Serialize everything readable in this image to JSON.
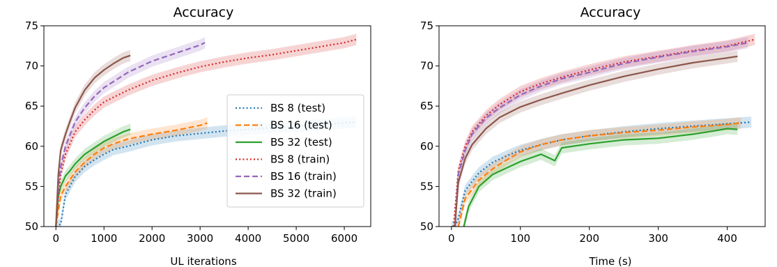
{
  "colors": {
    "BS 8 (test)": "#1f77b4",
    "BS 16 (test)": "#ff7f0e",
    "BS 32 (test)": "#2ca02c",
    "BS 8 (train)": "#d62728",
    "BS 16 (train)": "#9467bd",
    "BS 32 (train)": "#8c564b"
  },
  "chart_data": [
    {
      "type": "line",
      "title": "Accuracy",
      "xlabel": "UL iterations",
      "ylabel": "",
      "xlim": [
        -250,
        6550
      ],
      "ylim": [
        50,
        75
      ],
      "xticks": [
        0,
        1000,
        2000,
        3000,
        4000,
        5000,
        6000
      ],
      "yticks": [
        50,
        55,
        60,
        65,
        70,
        75
      ],
      "grid": false,
      "legend": "right",
      "legend_labels": [
        "BS 8 (test)",
        "BS 16 (test)",
        "BS 32 (test)",
        "BS 8 (train)",
        "BS 16 (train)",
        "BS 32 (train)"
      ],
      "series": [
        {
          "name": "BS 8 (test)",
          "style": "dotted",
          "x": [
            0,
            100,
            200,
            400,
            600,
            800,
            1000,
            1200,
            1500,
            2000,
            2500,
            3000,
            3500,
            4000,
            4500,
            5000,
            5500,
            6000,
            6250
          ],
          "y": [
            50,
            50.3,
            54,
            56.2,
            57.5,
            58.3,
            59,
            59.6,
            60,
            60.8,
            61.3,
            61.6,
            61.9,
            62.1,
            62.3,
            62.5,
            62.7,
            62.9,
            63
          ]
        },
        {
          "name": "BS 16 (test)",
          "style": "dashed",
          "x": [
            0,
            50,
            100,
            200,
            400,
            600,
            800,
            1000,
            1200,
            1500,
            2000,
            2500,
            3000,
            3150
          ],
          "y": [
            50,
            52,
            53.8,
            55,
            56.8,
            58,
            59,
            59.8,
            60.3,
            60.9,
            61.5,
            62,
            62.6,
            62.9
          ]
        },
        {
          "name": "BS 32 (test)",
          "style": "solid",
          "x": [
            0,
            50,
            100,
            200,
            300,
            400,
            500,
            600,
            800,
            1000,
            1200,
            1400,
            1550
          ],
          "y": [
            50,
            53.8,
            55,
            56.3,
            57,
            57.8,
            58.4,
            59,
            59.8,
            60.6,
            61.2,
            61.8,
            62.1
          ]
        },
        {
          "name": "BS 8 (train)",
          "style": "dotted",
          "x": [
            0,
            50,
            100,
            200,
            400,
            600,
            800,
            1000,
            1500,
            2000,
            2500,
            3000,
            3500,
            4000,
            4500,
            5000,
            5500,
            6000,
            6250
          ],
          "y": [
            50,
            53.5,
            56.5,
            59,
            61.8,
            63.3,
            64.5,
            65.5,
            67,
            68.2,
            69.1,
            69.9,
            70.5,
            71,
            71.4,
            71.9,
            72.4,
            72.9,
            73.3
          ]
        },
        {
          "name": "BS 16 (train)",
          "style": "dashed",
          "x": [
            0,
            50,
            100,
            200,
            400,
            600,
            800,
            1000,
            1500,
            2000,
            2500,
            3000,
            3100
          ],
          "y": [
            50,
            55,
            57.5,
            60,
            63,
            64.8,
            66.2,
            67.3,
            69.2,
            70.6,
            71.6,
            72.6,
            72.9
          ]
        },
        {
          "name": "BS 32 (train)",
          "style": "solid",
          "x": [
            0,
            50,
            100,
            200,
            300,
            400,
            600,
            800,
            1000,
            1200,
            1400,
            1550
          ],
          "y": [
            50,
            56.5,
            59.5,
            61.5,
            63.2,
            64.8,
            67,
            68.5,
            69.5,
            70.3,
            71,
            71.3
          ]
        }
      ]
    },
    {
      "type": "line",
      "title": "Accuracy",
      "xlabel": "Time (s)",
      "ylabel": "",
      "xlim": [
        -18,
        455
      ],
      "ylim": [
        50,
        75
      ],
      "xticks": [
        0,
        100,
        200,
        300,
        400
      ],
      "yticks": [
        50,
        55,
        60,
        65,
        70,
        75
      ],
      "grid": false,
      "legend": "",
      "series": [
        {
          "name": "BS 8 (test)",
          "style": "dotted",
          "x": [
            0,
            5,
            10,
            20,
            40,
            60,
            80,
            100,
            130,
            160,
            200,
            250,
            300,
            350,
            400,
            435
          ],
          "y": [
            50,
            50,
            51,
            54.5,
            56.7,
            58,
            58.8,
            59.5,
            60.2,
            60.8,
            61.3,
            61.8,
            62.2,
            62.5,
            62.8,
            63
          ]
        },
        {
          "name": "BS 16 (test)",
          "style": "dashed",
          "x": [
            10,
            20,
            40,
            60,
            80,
            100,
            130,
            160,
            200,
            250,
            300,
            350,
            400,
            420
          ],
          "y": [
            50,
            53.5,
            55.8,
            57.2,
            58.3,
            59.3,
            60.2,
            60.8,
            61.3,
            61.7,
            62,
            62.4,
            62.7,
            62.9
          ]
        },
        {
          "name": "BS 32 (test)",
          "style": "solid",
          "x": [
            18,
            25,
            40,
            60,
            80,
            100,
            130,
            150,
            160,
            200,
            250,
            300,
            350,
            380,
            400,
            415
          ],
          "y": [
            50,
            52.5,
            55,
            56.5,
            57.3,
            58.1,
            59,
            58.2,
            59.8,
            60.3,
            60.8,
            61,
            61.5,
            61.9,
            62.2,
            62.1
          ]
        },
        {
          "name": "BS 8 (train)",
          "style": "dotted",
          "x": [
            3,
            10,
            20,
            30,
            50,
            70,
            100,
            130,
            160,
            200,
            250,
            300,
            350,
            400,
            440
          ],
          "y": [
            50,
            57,
            60,
            61.8,
            63.8,
            65.2,
            66.8,
            67.8,
            68.6,
            69.5,
            70.5,
            71.2,
            71.9,
            72.5,
            73.3
          ]
        },
        {
          "name": "BS 16 (train)",
          "style": "dashed",
          "x": [
            5,
            10,
            20,
            30,
            50,
            70,
            100,
            130,
            160,
            200,
            250,
            300,
            350,
            400,
            430
          ],
          "y": [
            50,
            56.5,
            59.5,
            61.5,
            63.5,
            64.8,
            66.4,
            67.5,
            68.4,
            69.2,
            70.3,
            71.1,
            71.8,
            72.4,
            72.9
          ]
        },
        {
          "name": "BS 32 (train)",
          "style": "solid",
          "x": [
            5,
            10,
            20,
            30,
            50,
            70,
            100,
            130,
            160,
            200,
            250,
            300,
            350,
            400,
            415
          ],
          "y": [
            50,
            55.5,
            58.5,
            60.2,
            62.2,
            63.6,
            64.9,
            65.8,
            66.6,
            67.6,
            68.7,
            69.6,
            70.4,
            71,
            71.2
          ]
        }
      ]
    }
  ]
}
